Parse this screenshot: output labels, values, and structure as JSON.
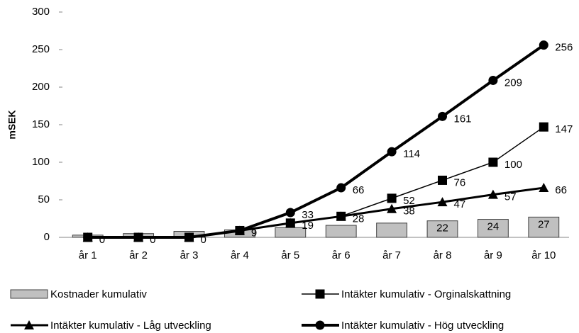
{
  "chart_data": {
    "type": "bar_line",
    "y_label": "mSEK",
    "categories": [
      "år 1",
      "år 2",
      "år 3",
      "år 4",
      "år 5",
      "år 6",
      "år 7",
      "år 8",
      "år 9",
      "år 10"
    ],
    "ylim": [
      0,
      300
    ],
    "yticks": [
      0,
      50,
      100,
      150,
      200,
      250,
      300
    ],
    "series": [
      {
        "name": "Kostnader kumulativ",
        "kind": "bar",
        "color": "#c0c0c0",
        "values": [
          3,
          5,
          8,
          10,
          13,
          16,
          19,
          22,
          24,
          27
        ],
        "value_labels": [
          null,
          null,
          null,
          null,
          null,
          null,
          null,
          "22",
          "24",
          "27"
        ]
      },
      {
        "name": "Intäkter kumulativ - Orginalskattning",
        "kind": "line",
        "marker": "square",
        "color": "#000000",
        "width": 1.5,
        "values": [
          0,
          0,
          0,
          9,
          19,
          28,
          52,
          76,
          100,
          147
        ],
        "value_labels": [
          "0",
          "0",
          "0",
          "9",
          "19",
          "28",
          "52",
          "76",
          "100",
          "147"
        ]
      },
      {
        "name": "Intäkter kumulativ - Låg utveckling",
        "kind": "line",
        "marker": "triangle",
        "color": "#000000",
        "width": 3,
        "values": [
          0,
          0,
          0,
          9,
          19,
          28,
          38,
          47,
          57,
          66
        ],
        "value_labels": [
          null,
          null,
          null,
          null,
          null,
          null,
          "38",
          "47",
          "57",
          "66"
        ]
      },
      {
        "name": "Intäkter kumulativ - Hög utveckling",
        "kind": "line",
        "marker": "circle",
        "color": "#000000",
        "width": 4,
        "values": [
          0,
          0,
          0,
          9,
          33,
          66,
          114,
          161,
          209,
          256
        ],
        "value_labels": [
          null,
          null,
          null,
          null,
          "33",
          "66",
          "114",
          "161",
          "209",
          "256"
        ]
      }
    ]
  }
}
